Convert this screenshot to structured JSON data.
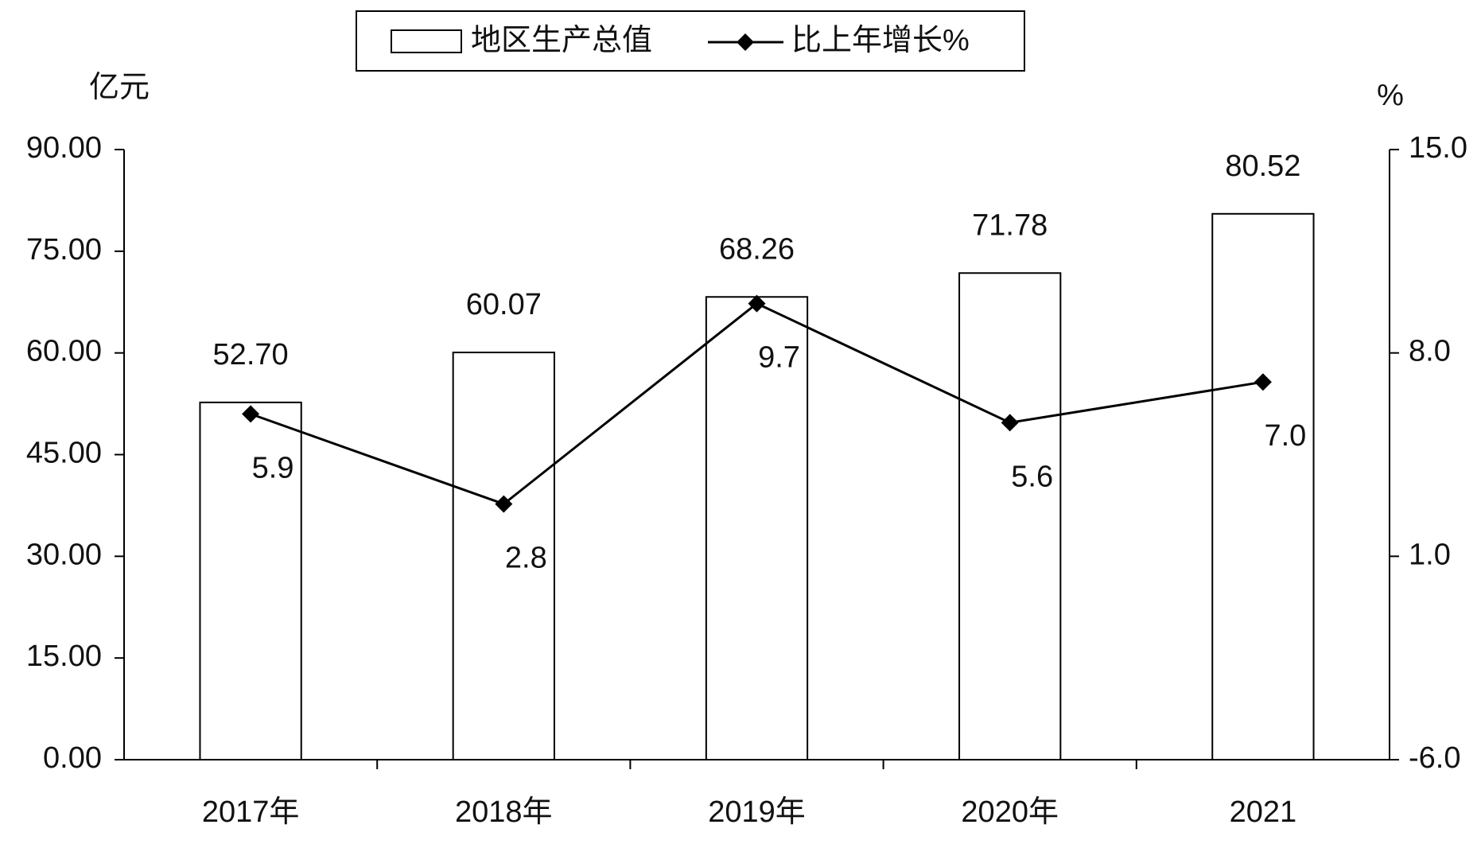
{
  "chart_data": {
    "type": "bar",
    "categories": [
      "2017年",
      "2018年",
      "2019年",
      "2020年",
      "2021"
    ],
    "y_label": "亿元",
    "y2_label": "%",
    "series": [
      {
        "name": "地区生产总值",
        "type": "bar",
        "color": "#ffffff",
        "values": [
          52.7,
          60.07,
          68.26,
          71.78,
          80.52
        ],
        "value_labels": [
          "52.70",
          "60.07",
          "68.26",
          "71.78",
          "80.52"
        ]
      },
      {
        "name": "比上年增长%",
        "type": "line",
        "axis": "y2",
        "color": "#000000",
        "values": [
          5.9,
          2.8,
          9.7,
          5.6,
          7.0
        ],
        "value_labels": [
          "5.9",
          "2.8",
          "9.7",
          "5.6",
          "7.0"
        ]
      }
    ],
    "ylim": [
      0,
      90
    ],
    "yticks": [
      {
        "value": 0,
        "label": "0.00"
      },
      {
        "value": 15,
        "label": "15.00"
      },
      {
        "value": 30,
        "label": "30.00"
      },
      {
        "value": 45,
        "label": "45.00"
      },
      {
        "value": 60,
        "label": "60.00"
      },
      {
        "value": 75,
        "label": "75.00"
      },
      {
        "value": 90,
        "label": "90.00"
      }
    ],
    "y2lim": [
      -6,
      15
    ],
    "y2ticks": [
      {
        "value": -6,
        "label": "-6.0"
      },
      {
        "value": 1,
        "label": "1.0"
      },
      {
        "value": 8,
        "label": "8.0"
      },
      {
        "value": 15,
        "label": "15.0"
      }
    ],
    "legend": "top"
  }
}
